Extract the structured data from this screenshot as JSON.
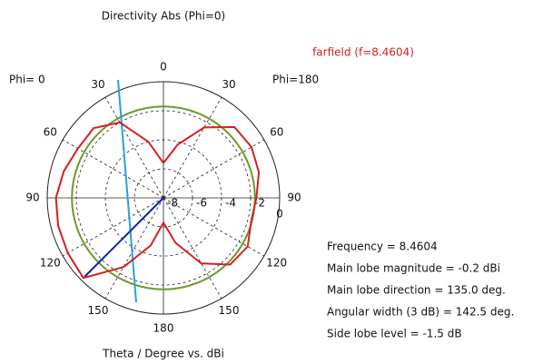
{
  "chart_data": {
    "type": "polar",
    "title": "Directivity Abs (Phi=0)",
    "subtitle": "farfield (f=8.4604)",
    "left_label": "Phi= 0",
    "right_label": "Phi=180",
    "xlabel": "Theta / Degree vs. dBi",
    "x": [
      0,
      15,
      30,
      45,
      60,
      75,
      90,
      105,
      120,
      135,
      150,
      165,
      180,
      195,
      210,
      225,
      240,
      255,
      270,
      285,
      300,
      315,
      330,
      345,
      360
    ],
    "series": [
      {
        "color": "#d42020",
        "values": [
          -5.6,
          -4.2,
          -2.4,
          -1.1,
          -1.0,
          -1.2,
          -1.6,
          -1.75,
          -1.3,
          -1.5,
          -2.8,
          -4.8,
          -6.3,
          -4.6,
          -2.5,
          -0.2,
          -0.4,
          -0.5,
          -0.6,
          -0.9,
          -1.2,
          -1.2,
          -2.0,
          -4.0,
          -5.6
        ]
      }
    ],
    "circle": {
      "color": "#6b9a2a",
      "value": -1.7
    },
    "rlim": [
      -8,
      0
    ],
    "rticks": [
      -8,
      -6,
      -4,
      -2,
      0
    ],
    "angle_ticks": [
      0,
      30,
      60,
      90,
      120,
      150,
      180,
      {
        "value": 210,
        "label": "150"
      },
      {
        "value": 240,
        "label": "120"
      },
      {
        "value": 270,
        "label": "90"
      },
      {
        "value": 300,
        "label": "60"
      },
      {
        "value": 330,
        "label": "30"
      }
    ],
    "info": [
      "Frequency = 8.4604",
      "Main lobe magnitude =  -0.2 dBi",
      "Main lobe direction = 135.0 deg.",
      "Angular width (3 dB) = 142.5 deg.",
      "Side lobe level =  -1.5 dB"
    ]
  }
}
